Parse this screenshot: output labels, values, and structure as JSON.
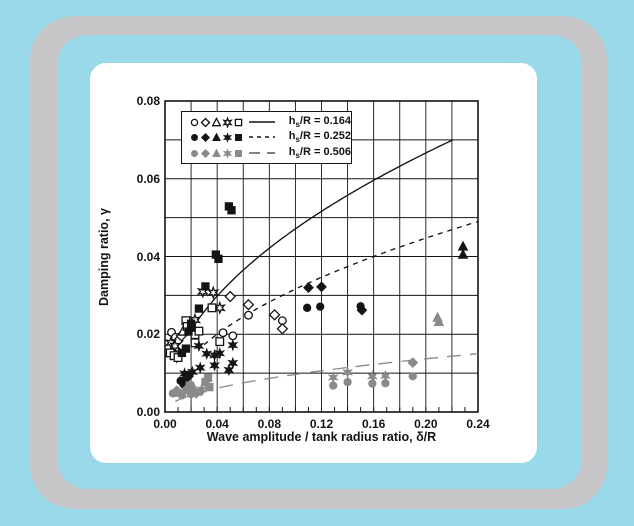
{
  "window": {
    "background_color": "#9ad9ea",
    "frame_color": "#c6c6c8",
    "panel_color": "#ffffff",
    "ink_color": "#141414",
    "gray_series_color": "#8a8a8a"
  },
  "chart_data": {
    "type": "scatter",
    "title": "",
    "xlabel": "Wave amplitude / tank radius ratio, δ/R",
    "ylabel": "Damping ratio, γ",
    "xlim": [
      0,
      0.24
    ],
    "ylim": [
      0,
      0.08
    ],
    "x_ticks": {
      "values": [
        0,
        0.04,
        0.08,
        0.12,
        0.16,
        0.2,
        0.24
      ],
      "labels": [
        "0.00",
        "0.04",
        "0.08",
        "0.12",
        "0.16",
        "0.20",
        "0.24"
      ]
    },
    "y_ticks": {
      "values": [
        0,
        0.02,
        0.04,
        0.06,
        0.08
      ],
      "labels": [
        "0.00",
        "0.02",
        "0.04",
        "0.06",
        "0.08"
      ]
    },
    "grid": {
      "show": true,
      "x_step": 0.02,
      "y_step": 0.01
    },
    "minor_x_tick_step": 0.01,
    "legend_position": "top-left",
    "marker_types": [
      "circle",
      "diamond",
      "triangle",
      "star",
      "square"
    ],
    "series": [
      {
        "id": "hsR_0164",
        "label": {
          "pre": "h",
          "sub": "s",
          "post": "/R = 0.164"
        },
        "marker_style": "open",
        "color": "#141414",
        "line": {
          "dash": "solid",
          "formula": "y = a*sqrt(x)",
          "a": 0.149,
          "x_range": [
            0.018,
            0.221
          ]
        },
        "points": {
          "circle": [
            [
              0.005,
              0.0205
            ],
            [
              0.008,
              0.0192
            ],
            [
              0.0445,
              0.0204
            ],
            [
              0.052,
              0.0196
            ],
            [
              0.064,
              0.0249
            ],
            [
              0.09,
              0.0235
            ]
          ],
          "diamond": [
            [
              0.01,
              0.0183
            ],
            [
              0.0125,
              0.0196
            ],
            [
              0.05,
              0.0297
            ],
            [
              0.064,
              0.0276
            ],
            [
              0.084,
              0.025
            ],
            [
              0.09,
              0.0214
            ]
          ],
          "triangle": [
            [
              0.014,
              0.0208
            ]
          ],
          "star": [
            [
              0.0045,
              0.0178
            ],
            [
              0.0077,
              0.017
            ],
            [
              0.005,
              0.015
            ],
            [
              0.009,
              0.0142
            ],
            [
              0.023,
              0.0237
            ],
            [
              0.029,
              0.031
            ],
            [
              0.037,
              0.0307
            ],
            [
              0.042,
              0.0268
            ]
          ],
          "square": [
            [
              0.004,
              0.0152
            ],
            [
              0.007,
              0.0145
            ],
            [
              0.01,
              0.014
            ],
            [
              0.016,
              0.0235
            ],
            [
              0.017,
              0.022
            ],
            [
              0.023,
              0.0199
            ],
            [
              0.026,
              0.0208
            ],
            [
              0.023,
              0.0178
            ],
            [
              0.042,
              0.0181
            ],
            [
              0.036,
              0.0268
            ]
          ]
        }
      },
      {
        "id": "hsR_0252",
        "label": {
          "pre": "h",
          "sub": "s",
          "post": "/R = 0.252"
        },
        "marker_style": "filled",
        "color": "#141414",
        "line": {
          "dash": "dashed",
          "formula": "y = a*sqrt(x)",
          "a": 0.1,
          "x_range": [
            0.03,
            0.24
          ]
        },
        "points": {
          "circle": [
            [
              0.012,
              0.008
            ],
            [
              0.016,
              0.0086
            ],
            [
              0.109,
              0.0268
            ],
            [
              0.119,
              0.0271
            ],
            [
              0.15,
              0.0272
            ]
          ],
          "diamond": [
            [
              0.015,
              0.0068
            ],
            [
              0.018,
              0.0092
            ],
            [
              0.11,
              0.032
            ],
            [
              0.12,
              0.0322
            ],
            [
              0.151,
              0.0262
            ]
          ],
          "triangle": [
            [
              0.2285,
              0.0426
            ],
            [
              0.2285,
              0.0405
            ]
          ],
          "star": [
            [
              0.015,
              0.0099
            ],
            [
              0.021,
              0.0103
            ],
            [
              0.026,
              0.017
            ],
            [
              0.027,
              0.0114
            ],
            [
              0.032,
              0.015
            ],
            [
              0.038,
              0.0146
            ],
            [
              0.038,
              0.012
            ],
            [
              0.042,
              0.0151
            ],
            [
              0.052,
              0.0172
            ],
            [
              0.052,
              0.0126
            ],
            [
              0.049,
              0.0108
            ]
          ],
          "square": [
            [
              0.049,
              0.0529
            ],
            [
              0.051,
              0.0519
            ],
            [
              0.039,
              0.0405
            ],
            [
              0.041,
              0.0394
            ],
            [
              0.031,
              0.0323
            ],
            [
              0.026,
              0.0266
            ],
            [
              0.02,
              0.0227
            ],
            [
              0.0205,
              0.0217
            ],
            [
              0.018,
              0.0207
            ],
            [
              0.016,
              0.0163
            ],
            [
              0.013,
              0.0152
            ]
          ]
        }
      },
      {
        "id": "hsR_0506",
        "label": {
          "pre": "h",
          "sub": "s",
          "post": "/R = 0.506"
        },
        "marker_style": "filled",
        "color": "#8a8a8a",
        "line": {
          "dash": "longdash",
          "formula": "y = a*sqrt(x)",
          "a": 0.0306,
          "x_range": [
            0.008,
            0.24
          ]
        },
        "points": {
          "circle": [
            [
              0.006,
              0.0048
            ],
            [
              0.013,
              0.0043
            ],
            [
              0.02,
              0.0046
            ],
            [
              0.027,
              0.0052
            ],
            [
              0.129,
              0.0068
            ],
            [
              0.14,
              0.0077
            ],
            [
              0.159,
              0.0073
            ],
            [
              0.169,
              0.0074
            ],
            [
              0.19,
              0.0092
            ]
          ],
          "diamond": [
            [
              0.009,
              0.0055
            ],
            [
              0.017,
              0.006
            ],
            [
              0.024,
              0.0048
            ],
            [
              0.19,
              0.0127
            ]
          ],
          "triangle": [
            [
              0.011,
              0.005
            ],
            [
              0.022,
              0.0062
            ],
            [
              0.209,
              0.0243
            ],
            [
              0.21,
              0.0232
            ]
          ],
          "star": [
            [
              0.015,
              0.0052
            ],
            [
              0.028,
              0.0058
            ],
            [
              0.129,
              0.0089
            ],
            [
              0.14,
              0.0102
            ],
            [
              0.159,
              0.0092
            ],
            [
              0.169,
              0.0093
            ]
          ],
          "square": [
            [
              0.019,
              0.0068
            ],
            [
              0.031,
              0.0077
            ],
            [
              0.033,
              0.0088
            ],
            [
              0.034,
              0.0064
            ]
          ]
        }
      }
    ]
  }
}
